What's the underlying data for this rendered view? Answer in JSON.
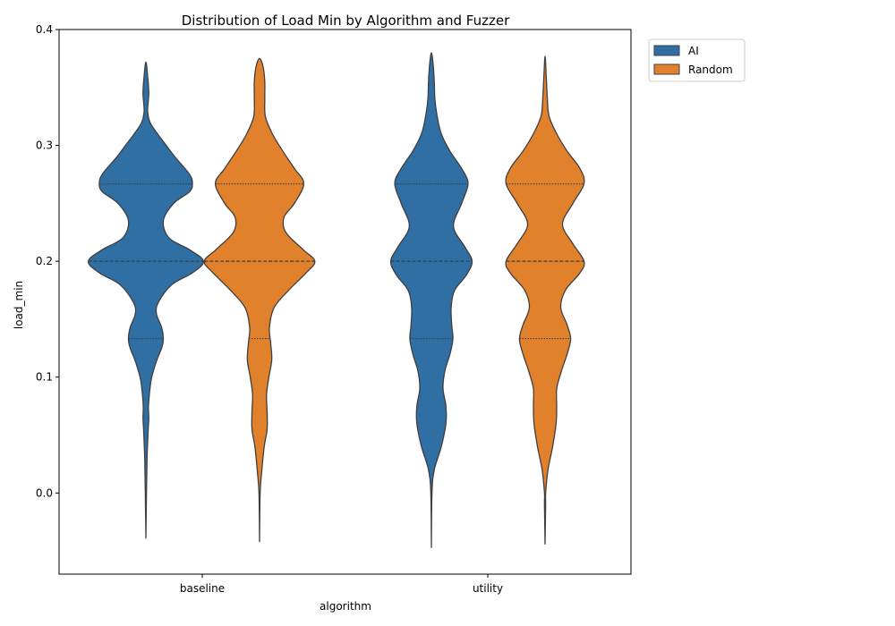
{
  "chart_data": {
    "type": "violin",
    "title": "Distribution of Load Min by Algorithm and Fuzzer",
    "xlabel": "algorithm",
    "ylabel": "load_min",
    "categories": [
      "baseline",
      "utility"
    ],
    "ylim": [
      -0.07,
      0.4
    ],
    "yticks": [
      "0.0",
      "0.1",
      "0.2",
      "0.3",
      "0.4"
    ],
    "ytick_values": [
      0.0,
      0.1,
      0.2,
      0.3,
      0.4
    ],
    "legend_position": "outside top-right",
    "series": [
      {
        "name": "AI",
        "color": "#2f6fa4",
        "violins": [
          {
            "category": "baseline",
            "quartiles": [
              0.1333,
              0.2,
              0.2667
            ],
            "range": [
              -0.039,
              0.372
            ],
            "density": [
              [
                -0.039,
                0.0
              ],
              [
                0.0,
                0.01
              ],
              [
                0.03,
                0.02
              ],
              [
                0.055,
                0.04
              ],
              [
                0.065,
                0.05
              ],
              [
                0.075,
                0.045
              ],
              [
                0.09,
                0.07
              ],
              [
                0.1,
                0.1
              ],
              [
                0.115,
                0.19
              ],
              [
                0.125,
                0.27
              ],
              [
                0.133,
                0.3
              ],
              [
                0.143,
                0.27
              ],
              [
                0.155,
                0.18
              ],
              [
                0.165,
                0.22
              ],
              [
                0.18,
                0.45
              ],
              [
                0.19,
                0.8
              ],
              [
                0.2,
                0.99
              ],
              [
                0.21,
                0.75
              ],
              [
                0.22,
                0.4
              ],
              [
                0.235,
                0.3
              ],
              [
                0.25,
                0.48
              ],
              [
                0.26,
                0.75
              ],
              [
                0.267,
                0.8
              ],
              [
                0.275,
                0.75
              ],
              [
                0.29,
                0.5
              ],
              [
                0.3,
                0.35
              ],
              [
                0.31,
                0.2
              ],
              [
                0.32,
                0.07
              ],
              [
                0.33,
                0.03
              ],
              [
                0.345,
                0.05
              ],
              [
                0.36,
                0.03
              ],
              [
                0.372,
                0.0
              ]
            ]
          },
          {
            "category": "utility",
            "quartiles": [
              0.1333,
              0.2,
              0.2667
            ],
            "range": [
              -0.047,
              0.38
            ],
            "density": [
              [
                -0.047,
                0.0
              ],
              [
                0.0,
                0.01
              ],
              [
                0.02,
                0.05
              ],
              [
                0.04,
                0.17
              ],
              [
                0.06,
                0.25
              ],
              [
                0.075,
                0.25
              ],
              [
                0.09,
                0.2
              ],
              [
                0.105,
                0.23
              ],
              [
                0.12,
                0.32
              ],
              [
                0.133,
                0.37
              ],
              [
                0.145,
                0.35
              ],
              [
                0.16,
                0.34
              ],
              [
                0.175,
                0.4
              ],
              [
                0.188,
                0.6
              ],
              [
                0.2,
                0.7
              ],
              [
                0.212,
                0.58
              ],
              [
                0.23,
                0.38
              ],
              [
                0.25,
                0.52
              ],
              [
                0.267,
                0.63
              ],
              [
                0.28,
                0.52
              ],
              [
                0.295,
                0.32
              ],
              [
                0.31,
                0.17
              ],
              [
                0.325,
                0.1
              ],
              [
                0.34,
                0.06
              ],
              [
                0.355,
                0.05
              ],
              [
                0.37,
                0.03
              ],
              [
                0.38,
                0.0
              ]
            ]
          }
        ]
      },
      {
        "name": "Random",
        "color": "#e1812c",
        "violins": [
          {
            "category": "baseline",
            "quartiles": [
              0.1333,
              0.2,
              0.2667
            ],
            "range": [
              -0.042,
              0.375
            ],
            "density": [
              [
                -0.042,
                0.0
              ],
              [
                0.0,
                0.01
              ],
              [
                0.02,
                0.04
              ],
              [
                0.04,
                0.08
              ],
              [
                0.055,
                0.13
              ],
              [
                0.07,
                0.13
              ],
              [
                0.085,
                0.12
              ],
              [
                0.1,
                0.16
              ],
              [
                0.115,
                0.21
              ],
              [
                0.13,
                0.19
              ],
              [
                0.143,
                0.17
              ],
              [
                0.16,
                0.25
              ],
              [
                0.175,
                0.5
              ],
              [
                0.19,
                0.8
              ],
              [
                0.2,
                0.95
              ],
              [
                0.21,
                0.75
              ],
              [
                0.225,
                0.45
              ],
              [
                0.238,
                0.42
              ],
              [
                0.25,
                0.6
              ],
              [
                0.267,
                0.76
              ],
              [
                0.28,
                0.6
              ],
              [
                0.295,
                0.4
              ],
              [
                0.31,
                0.22
              ],
              [
                0.325,
                0.1
              ],
              [
                0.34,
                0.09
              ],
              [
                0.355,
                0.09
              ],
              [
                0.368,
                0.06
              ],
              [
                0.375,
                0.0
              ]
            ]
          },
          {
            "category": "utility",
            "quartiles": [
              0.1333,
              0.2,
              0.2667
            ],
            "range": [
              -0.044,
              0.377
            ],
            "density": [
              [
                -0.044,
                0.0
              ],
              [
                -0.01,
                0.01
              ],
              [
                0.0,
                0.01
              ],
              [
                0.02,
                0.05
              ],
              [
                0.04,
                0.13
              ],
              [
                0.06,
                0.19
              ],
              [
                0.075,
                0.2
              ],
              [
                0.09,
                0.2
              ],
              [
                0.105,
                0.28
              ],
              [
                0.12,
                0.38
              ],
              [
                0.133,
                0.44
              ],
              [
                0.145,
                0.38
              ],
              [
                0.16,
                0.27
              ],
              [
                0.175,
                0.35
              ],
              [
                0.19,
                0.6
              ],
              [
                0.2,
                0.67
              ],
              [
                0.215,
                0.48
              ],
              [
                0.232,
                0.3
              ],
              [
                0.25,
                0.48
              ],
              [
                0.267,
                0.67
              ],
              [
                0.28,
                0.6
              ],
              [
                0.295,
                0.38
              ],
              [
                0.31,
                0.2
              ],
              [
                0.325,
                0.07
              ],
              [
                0.34,
                0.04
              ],
              [
                0.36,
                0.02
              ],
              [
                0.377,
                0.0
              ]
            ]
          }
        ]
      }
    ]
  }
}
